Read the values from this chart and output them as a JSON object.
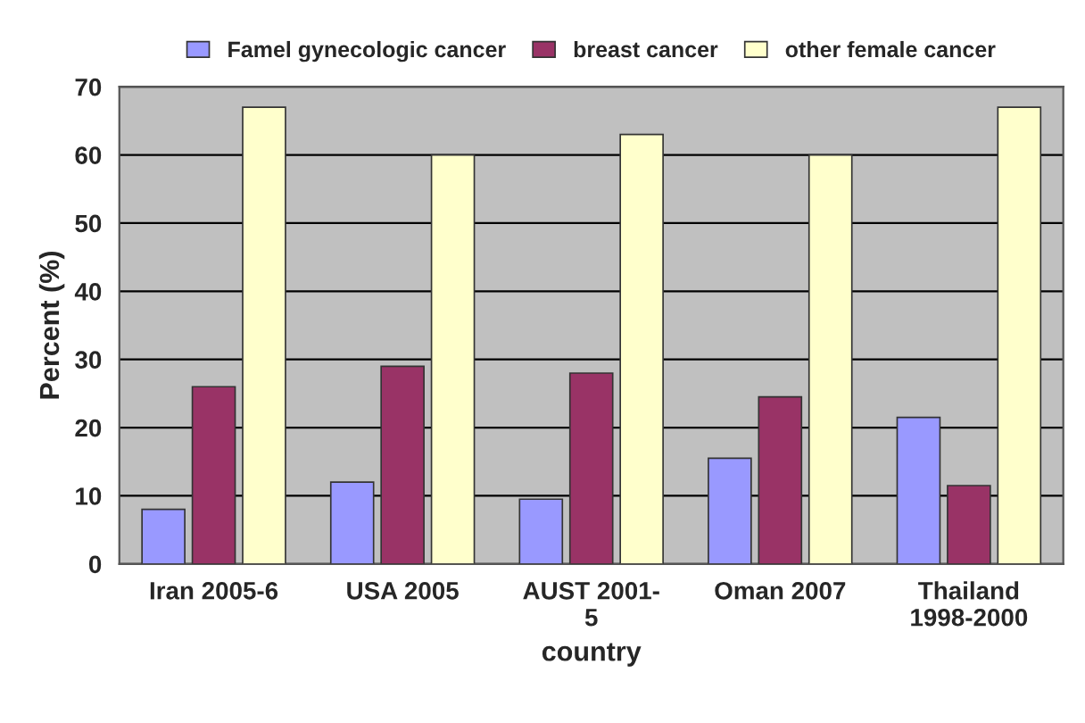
{
  "chart_data": {
    "type": "bar",
    "xlabel": "country",
    "ylabel": "Percent (%)",
    "categories": [
      "Iran 2005-6",
      "USA 2005",
      "AUST 2001-\n5",
      "Oman 2007",
      "Thailand\n1998-2000"
    ],
    "series": [
      {
        "name": "Famel gynecologic cancer",
        "color": "#9999ff",
        "values": [
          8,
          12,
          9.5,
          15.5,
          21.5
        ]
      },
      {
        "name": "breast cancer",
        "color": "#993366",
        "values": [
          26,
          29,
          28,
          24.5,
          11.5
        ]
      },
      {
        "name": "other female cancer",
        "color": "#ffffcc",
        "values": [
          67,
          60,
          63,
          60,
          67
        ]
      }
    ],
    "ylim": [
      0,
      70
    ],
    "yticks": [
      0,
      10,
      20,
      30,
      40,
      50,
      60,
      70
    ],
    "grid": "y",
    "legend": "top"
  }
}
